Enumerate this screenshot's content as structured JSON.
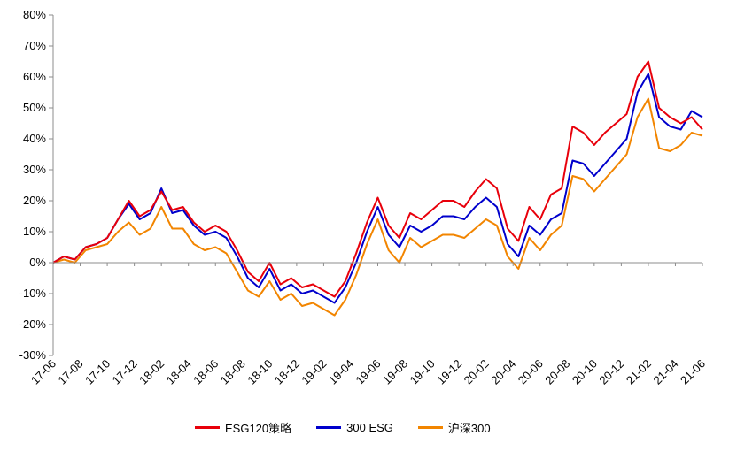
{
  "chart_data": {
    "type": "line",
    "title": "",
    "xlabel": "",
    "ylabel": "",
    "ylim": [
      -30,
      80
    ],
    "y_ticks": [
      "80%",
      "70%",
      "60%",
      "50%",
      "40%",
      "30%",
      "20%",
      "10%",
      "0%",
      "-10%",
      "-20%",
      "-30%"
    ],
    "x_ticks": [
      "17-06",
      "17-08",
      "17-10",
      "17-12",
      "18-02",
      "18-04",
      "18-06",
      "18-08",
      "18-10",
      "18-12",
      "19-02",
      "19-04",
      "19-06",
      "19-08",
      "19-10",
      "19-12",
      "20-02",
      "20-04",
      "20-06",
      "20-08",
      "20-10",
      "20-12",
      "21-02",
      "21-04",
      "21-06"
    ],
    "grid": false,
    "legend_placement": "bottom",
    "colors": {
      "ESG120策略": "#e8000b",
      "300 ESG": "#0000cc",
      "沪深300": "#f28500"
    },
    "series": [
      {
        "name": "ESG120策略",
        "values": [
          0,
          2,
          1,
          5,
          6,
          8,
          14,
          20,
          15,
          17,
          23,
          17,
          18,
          13,
          10,
          12,
          10,
          4,
          -3,
          -6,
          0,
          -7,
          -5,
          -8,
          -7,
          -9,
          -11,
          -6,
          3,
          13,
          21,
          12,
          8,
          16,
          14,
          17,
          20,
          20,
          18,
          23,
          27,
          24,
          11,
          7,
          18,
          14,
          22,
          24,
          44,
          42,
          38,
          42,
          45,
          48,
          60,
          65,
          50,
          47,
          45,
          47,
          43
        ]
      },
      {
        "name": "300 ESG",
        "values": [
          0,
          2,
          1,
          5,
          6,
          8,
          14,
          19,
          14,
          16,
          24,
          16,
          17,
          12,
          9,
          10,
          8,
          2,
          -5,
          -8,
          -2,
          -9,
          -7,
          -10,
          -9,
          -11,
          -13,
          -8,
          0,
          10,
          18,
          9,
          5,
          12,
          10,
          12,
          15,
          15,
          14,
          18,
          21,
          18,
          6,
          2,
          12,
          9,
          14,
          16,
          33,
          32,
          28,
          32,
          36,
          40,
          55,
          61,
          47,
          44,
          43,
          49,
          47
        ]
      },
      {
        "name": "沪深300",
        "values": [
          0,
          1,
          0,
          4,
          5,
          6,
          10,
          13,
          9,
          11,
          18,
          11,
          11,
          6,
          4,
          5,
          3,
          -3,
          -9,
          -11,
          -6,
          -12,
          -10,
          -14,
          -13,
          -15,
          -17,
          -12,
          -4,
          6,
          14,
          4,
          0,
          8,
          5,
          7,
          9,
          9,
          8,
          11,
          14,
          12,
          2,
          -2,
          8,
          4,
          9,
          12,
          28,
          27,
          23,
          27,
          31,
          35,
          47,
          53,
          37,
          36,
          38,
          42,
          41
        ]
      }
    ]
  }
}
